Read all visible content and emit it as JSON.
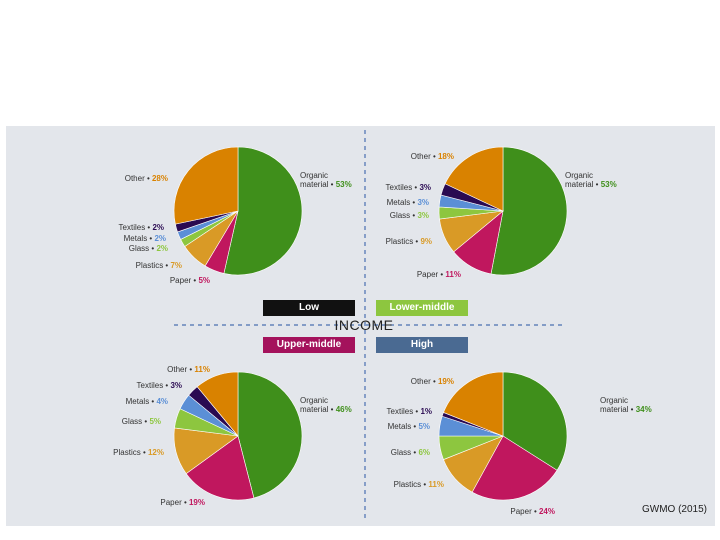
{
  "colors": {
    "organic": "#3f8f1b",
    "paper": "#c0175e",
    "plastics": "#d99a26",
    "glass": "#8dc63f",
    "metals": "#5b8fd6",
    "textiles": "#2a0a52",
    "other": "#d98200"
  },
  "legend": {
    "low": "Low",
    "lower_middle": "Lower-middle",
    "upper_middle": "Upper-middle",
    "high": "High",
    "low_color": "#111111",
    "lower_middle_color": "#8dc63f",
    "upper_middle_color": "#a4125c",
    "high_color": "#4a6a92"
  },
  "axis_title": "INCOME",
  "source": "GWMO (2015)",
  "chart_data": [
    {
      "type": "pie",
      "group": "Low",
      "slices": [
        {
          "label": "Organic material",
          "value": 53,
          "text": "53%"
        },
        {
          "label": "Paper",
          "value": 5,
          "text": "5%"
        },
        {
          "label": "Plastics",
          "value": 7,
          "text": "7%"
        },
        {
          "label": "Glass",
          "value": 2,
          "text": "2%"
        },
        {
          "label": "Metals",
          "value": 2,
          "text": "2%"
        },
        {
          "label": "Textiles",
          "value": 2,
          "text": "2%"
        },
        {
          "label": "Other",
          "value": 28,
          "text": "28%"
        }
      ]
    },
    {
      "type": "pie",
      "group": "Lower-middle",
      "slices": [
        {
          "label": "Organic material",
          "value": 53,
          "text": "53%"
        },
        {
          "label": "Paper",
          "value": 11,
          "text": "11%"
        },
        {
          "label": "Plastics",
          "value": 9,
          "text": "9%"
        },
        {
          "label": "Glass",
          "value": 3,
          "text": "3%"
        },
        {
          "label": "Metals",
          "value": 3,
          "text": "3%"
        },
        {
          "label": "Textiles",
          "value": 3,
          "text": "3%"
        },
        {
          "label": "Other",
          "value": 18,
          "text": "18%"
        }
      ]
    },
    {
      "type": "pie",
      "group": "Upper-middle",
      "slices": [
        {
          "label": "Organic material",
          "value": 46,
          "text": "46%"
        },
        {
          "label": "Paper",
          "value": 19,
          "text": "19%"
        },
        {
          "label": "Plastics",
          "value": 12,
          "text": "12%"
        },
        {
          "label": "Glass",
          "value": 5,
          "text": "5%"
        },
        {
          "label": "Metals",
          "value": 4,
          "text": "4%"
        },
        {
          "label": "Textiles",
          "value": 3,
          "text": "3%"
        },
        {
          "label": "Other",
          "value": 11,
          "text": "11%"
        }
      ]
    },
    {
      "type": "pie",
      "group": "High",
      "slices": [
        {
          "label": "Organic material",
          "value": 34,
          "text": "34%"
        },
        {
          "label": "Paper",
          "value": 24,
          "text": "24%"
        },
        {
          "label": "Plastics",
          "value": 11,
          "text": "11%"
        },
        {
          "label": "Glass",
          "value": 6,
          "text": "6%"
        },
        {
          "label": "Metals",
          "value": 5,
          "text": "5%"
        },
        {
          "label": "Textiles",
          "value": 1,
          "text": "1%"
        },
        {
          "label": "Other",
          "value": 19,
          "text": "19%"
        }
      ]
    }
  ]
}
